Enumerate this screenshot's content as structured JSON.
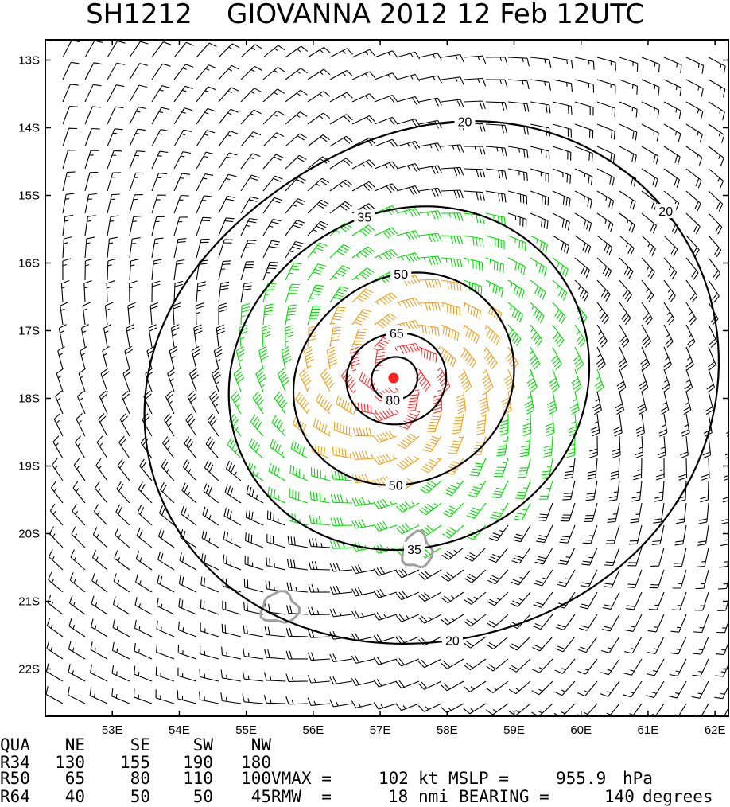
{
  "chart_data": {
    "type": "wind_barb_map",
    "title": "SH1212    GIOVANNA 2012 12 Feb 12UTC",
    "storm_id": "SH1212",
    "storm_name": "GIOVANNA",
    "year": "2012",
    "date": "12 Feb",
    "time": "12UTC",
    "lon_range": [
      52.0,
      62.2
    ],
    "lat_range": [
      -22.7,
      -12.7
    ],
    "lat_ticks": [
      "13S",
      "14S",
      "15S",
      "16S",
      "17S",
      "18S",
      "19S",
      "20S",
      "21S",
      "22S"
    ],
    "lon_ticks": [
      "53E",
      "54E",
      "55E",
      "56E",
      "57E",
      "58E",
      "59E",
      "60E",
      "61E",
      "62E"
    ],
    "center": {
      "lon": 57.2,
      "lat": -17.7
    },
    "contour_labels": [
      "20",
      "20",
      "20",
      "35",
      "35",
      "50",
      "50",
      "65",
      "80"
    ],
    "wind_colors": {
      "lt34": "#000000",
      "34to50": "#00dd00",
      "50to64": "#f0a020",
      "ge64": "#ff3030"
    },
    "land_color": "#a0a0a0",
    "center_color": "#ff2020",
    "wind_radii": {
      "headers": [
        "QUA",
        "NE",
        "SE",
        "SW",
        "NW"
      ],
      "rows": [
        [
          "R34",
          "130",
          "155",
          "190",
          "180"
        ],
        [
          "R50",
          "65",
          "80",
          "110",
          "100"
        ],
        [
          "R64",
          "40",
          "50",
          "50",
          "45"
        ]
      ]
    },
    "vmax_label": "VMAX =",
    "vmax": "102",
    "vmax_unit": "kt",
    "mslp_label": "MSLP =",
    "mslp": "955.9",
    "mslp_unit": "hPa",
    "rmw_label": "RMW  =",
    "rmw": "18",
    "rmw_unit": "nmi",
    "bearing_label": "BEARING =",
    "bearing": "140",
    "bearing_unit": "degrees"
  }
}
